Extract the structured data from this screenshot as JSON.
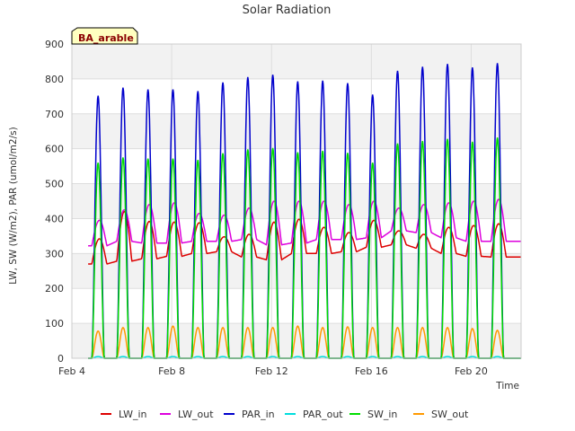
{
  "chart_data": {
    "type": "line",
    "title": "Solar Radiation",
    "xlabel": "Time",
    "ylabel": "LW, SW (W/m2), PAR (umol/m2/s)",
    "badge": "BA_arable",
    "x_ticks": [
      "Feb 4",
      "Feb 8",
      "Feb 12",
      "Feb 16",
      "Feb 20"
    ],
    "x_range_days": [
      4,
      22
    ],
    "y_ticks": [
      "0",
      "100",
      "200",
      "300",
      "400",
      "500",
      "600",
      "700",
      "800",
      "900"
    ],
    "ylim": [
      0,
      900
    ],
    "grid": true,
    "legend_position": "bottom",
    "day_starts": [
      4.8,
      5.8,
      6.8,
      7.8,
      8.8,
      9.8,
      10.8,
      11.8,
      12.8,
      13.8,
      14.8,
      15.8,
      16.8,
      17.8,
      18.8,
      19.8,
      20.8
    ],
    "series": [
      {
        "name": "LW_in",
        "color": "#dd0000",
        "kind": "lw",
        "night": [
          270,
          278,
          285,
          292,
          300,
          305,
          290,
          282,
          300,
          300,
          305,
          318,
          325,
          315,
          300,
          292,
          290
        ],
        "peak": [
          342,
          420,
          392,
          390,
          388,
          348,
          355,
          390,
          398,
          375,
          360,
          395,
          365,
          355,
          375,
          380,
          385
        ]
      },
      {
        "name": "LW_out",
        "color": "#dd00dd",
        "kind": "lw",
        "night": [
          322,
          335,
          330,
          330,
          335,
          335,
          340,
          325,
          330,
          340,
          340,
          345,
          365,
          360,
          345,
          335,
          335
        ],
        "peak": [
          395,
          425,
          440,
          445,
          415,
          410,
          430,
          450,
          450,
          450,
          440,
          450,
          430,
          440,
          445,
          450,
          455
        ]
      },
      {
        "name": "PAR_in",
        "color": "#0000cc",
        "kind": "peak",
        "peak": [
          752,
          775,
          770,
          770,
          765,
          790,
          805,
          812,
          793,
          795,
          788,
          755,
          823,
          835,
          843,
          833,
          845
        ]
      },
      {
        "name": "PAR_out",
        "color": "#00dddd",
        "kind": "peak",
        "peak": [
          5,
          5,
          5,
          5,
          5,
          5,
          5,
          5,
          5,
          5,
          5,
          5,
          5,
          5,
          5,
          5,
          5
        ]
      },
      {
        "name": "SW_in",
        "color": "#00dd00",
        "kind": "peak",
        "peak": [
          560,
          575,
          572,
          572,
          568,
          587,
          598,
          602,
          590,
          594,
          588,
          560,
          615,
          622,
          628,
          620,
          632
        ]
      },
      {
        "name": "SW_out",
        "color": "#ff9900",
        "kind": "peak",
        "peak": [
          78,
          88,
          88,
          92,
          88,
          88,
          88,
          88,
          92,
          88,
          90,
          88,
          88,
          88,
          88,
          85,
          80
        ]
      }
    ]
  }
}
